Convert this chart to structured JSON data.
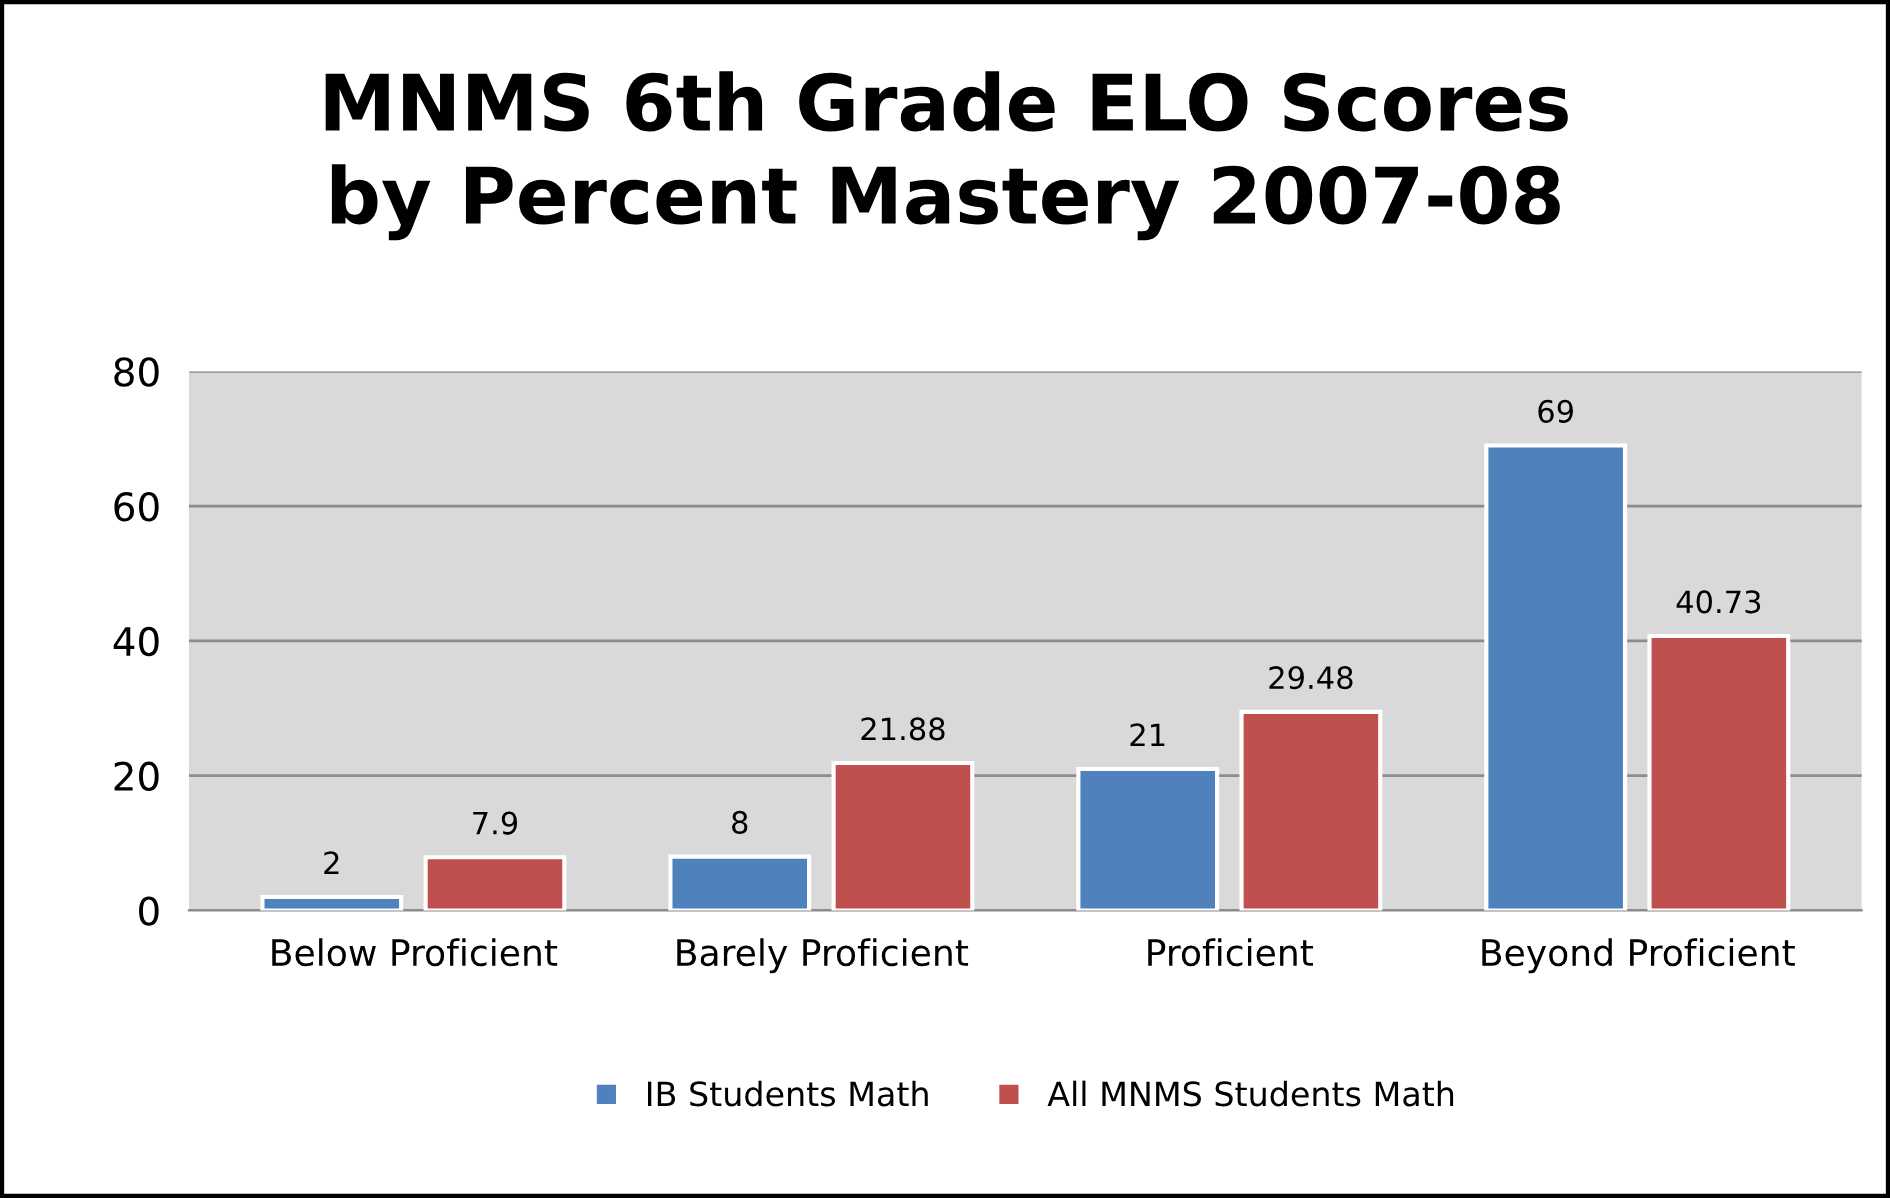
{
  "chart_data": {
    "type": "bar",
    "title": "MNMS 6th Grade ELO Scores\nby Percent Mastery 2007-08",
    "categories": [
      "Below Proficient",
      "Barely Proficient",
      "Proficient",
      "Beyond Proficient"
    ],
    "series": [
      {
        "name": "IB Students Math",
        "color": "#4f81bd",
        "values": [
          2,
          8,
          21,
          69
        ]
      },
      {
        "name": "All MNMS Students Math",
        "color": "#c0504d",
        "values": [
          7.9,
          21.88,
          29.48,
          40.73
        ]
      }
    ],
    "ylim": [
      0,
      80
    ],
    "yticks": [
      0,
      20,
      40,
      60,
      80
    ],
    "grid": "y",
    "legend": "bottom",
    "data_labels": true
  }
}
